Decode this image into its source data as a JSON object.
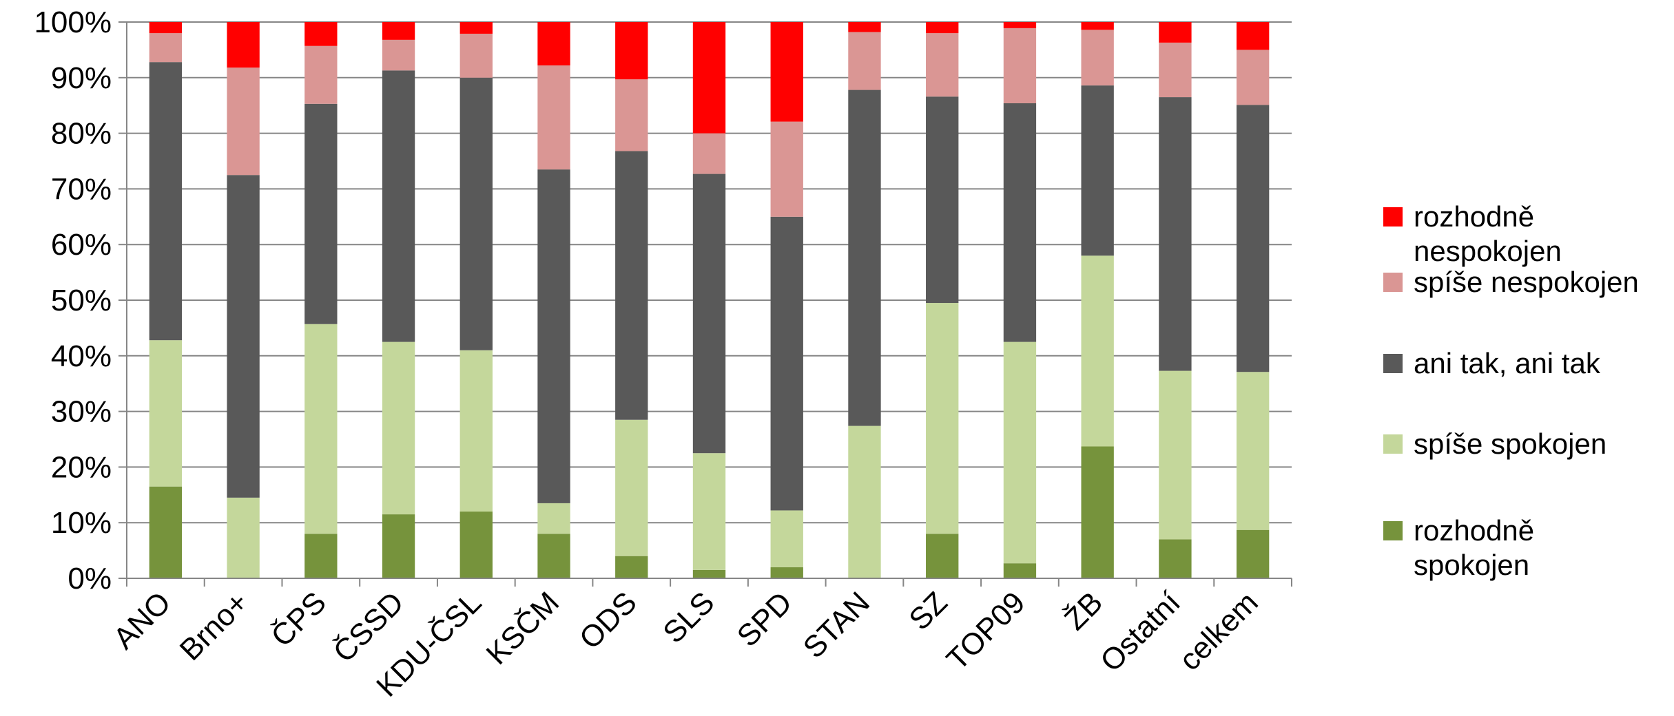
{
  "chart_data": {
    "type": "bar",
    "stacked": true,
    "percent_stacked": true,
    "title": "",
    "xlabel": "",
    "ylabel": "",
    "ylim": [
      0,
      100
    ],
    "yticks": [
      "0%",
      "10%",
      "20%",
      "30%",
      "40%",
      "50%",
      "60%",
      "70%",
      "80%",
      "90%",
      "100%"
    ],
    "grid": true,
    "legend_position": "right",
    "categories": [
      "ANO",
      "Brno+",
      "ČPS",
      "ČSSD",
      "KDU-ČSL",
      "KSČM",
      "ODS",
      "SLS",
      "SPD",
      "STAN",
      "SZ",
      "TOP09",
      "ŽB",
      "Ostatní",
      "celkem"
    ],
    "series": [
      {
        "name": "rozhodně spokojen",
        "color": "#76933c",
        "values": [
          16.5,
          0,
          8,
          11.5,
          12,
          8,
          4,
          1.5,
          2,
          0,
          8,
          2.7,
          23.7,
          7,
          8.7
        ]
      },
      {
        "name": "spíše spokojen",
        "color": "#c4d79b",
        "values": [
          26.3,
          14.5,
          37.7,
          31,
          29,
          5.5,
          24.5,
          21,
          10.2,
          27.4,
          41.5,
          39.8,
          34.3,
          30.3,
          28.4
        ]
      },
      {
        "name": "ani tak, ani tak",
        "color": "#595959",
        "values": [
          50,
          58,
          39.6,
          48.8,
          49,
          60,
          48.3,
          50.2,
          52.8,
          60.4,
          37.1,
          42.9,
          30.6,
          49.2,
          48
        ]
      },
      {
        "name": "spíše nespokojen",
        "color": "#da9694",
        "values": [
          5.2,
          19.3,
          10.4,
          5.5,
          7.9,
          18.7,
          12.9,
          7.3,
          17.1,
          10.4,
          11.4,
          13.5,
          10,
          9.8,
          9.9
        ]
      },
      {
        "name": "rozhodně nespokojen",
        "color": "#ff0000",
        "values": [
          2,
          8.2,
          4.3,
          3.2,
          2.1,
          7.8,
          10.3,
          20,
          17.9,
          1.8,
          2,
          1.1,
          1.4,
          3.7,
          5
        ]
      }
    ],
    "legend": [
      {
        "lines": [
          "rozhodně",
          "nespokojen"
        ],
        "color": "#ff0000"
      },
      {
        "lines": [
          "spíše nespokojen"
        ],
        "color": "#da9694"
      },
      {
        "lines": [
          "ani tak, ani tak"
        ],
        "color": "#595959"
      },
      {
        "lines": [
          "spíše spokojen"
        ],
        "color": "#c4d79b"
      },
      {
        "lines": [
          "rozhodně",
          "spokojen"
        ],
        "color": "#76933c"
      }
    ]
  }
}
